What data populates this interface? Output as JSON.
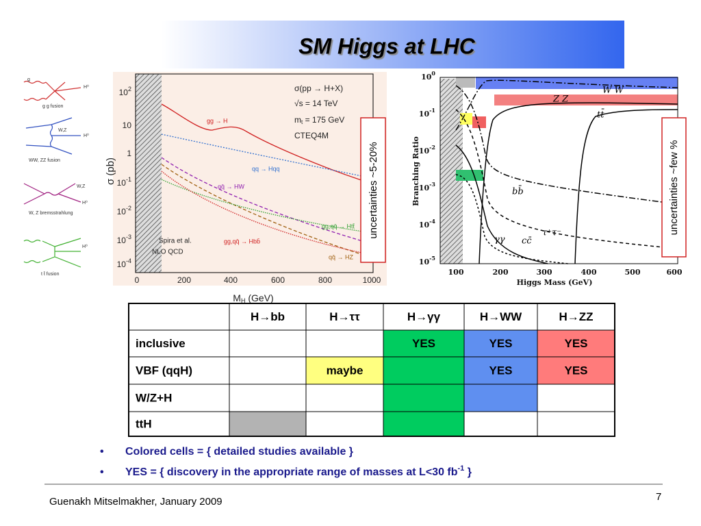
{
  "title": "SM Higgs at LHC",
  "diagrams": [
    {
      "caption": "g g fusion",
      "particles": [
        "g",
        "H⁰"
      ]
    },
    {
      "caption": "WW, ZZ fusion",
      "particles": [
        "W,Z",
        "H⁰"
      ]
    },
    {
      "caption": "W, Z bremsstrahlung",
      "particles": [
        "W,Z",
        "H⁰"
      ]
    },
    {
      "caption": "t t̄ fusion",
      "particles": [
        "H⁰"
      ]
    }
  ],
  "left_plot": {
    "y_label": "σ (pb)",
    "x_label": [
      "M",
      "H",
      " (GeV)"
    ],
    "y_ticks": [
      {
        "base": "10",
        "exp": "2"
      },
      "10",
      "1",
      {
        "base": "10",
        "exp": "-1"
      },
      {
        "base": "10",
        "exp": "-2"
      },
      {
        "base": "10",
        "exp": "-3"
      },
      {
        "base": "10",
        "exp": "-4"
      }
    ],
    "x_ticks": [
      "0",
      "200",
      "400",
      "600",
      "800",
      "1000"
    ],
    "process_info": [
      "σ(pp → H+X)",
      "√s = 14 TeV",
      [
        "m",
        "t",
        " = 175 GeV"
      ],
      "CTEQ4M"
    ],
    "curve_labels": [
      "gg → H",
      "qq → Hqq",
      "qq̄ → HW",
      "gg,qq̄ → Htt̄",
      "gg,qq̄ → Hbb̄",
      "qq̄ → HZ"
    ],
    "credit": [
      "Spira et al.",
      "NLO QCD"
    ]
  },
  "right_plot": {
    "y_label": "Branching Ratio",
    "x_label": "Higgs Mass (GeV)",
    "y_ticks": [
      {
        "base": "10",
        "exp": "0"
      },
      {
        "base": "10",
        "exp": "-1"
      },
      {
        "base": "10",
        "exp": "-2"
      },
      {
        "base": "10",
        "exp": "-3"
      },
      {
        "base": "10",
        "exp": "-4"
      },
      {
        "base": "10",
        "exp": "-5"
      }
    ],
    "x_ticks": [
      "100",
      "200",
      "300",
      "400",
      "500",
      "600"
    ],
    "curve_labels": [
      "W W",
      "Z Z",
      "tt̄",
      "bb̄",
      "τ⁺τ⁻",
      "cc̄",
      "γγ"
    ]
  },
  "uncertainty_notes": [
    "uncertainties ~5-20%",
    "uncertainties ~few %"
  ],
  "table": {
    "header": [
      "H→bb",
      "H→ττ",
      "H→γγ",
      "H→WW",
      "H→ZZ"
    ],
    "rows": [
      {
        "label": "inclusive",
        "cells": [
          null,
          null,
          "YES",
          "YES",
          "YES"
        ],
        "colors": [
          null,
          null,
          "#00cc5f",
          "#5f8ff0",
          "#ff7b7b"
        ]
      },
      {
        "label": "VBF (qqH)",
        "cells": [
          null,
          "maybe",
          null,
          "YES",
          "YES"
        ],
        "colors": [
          null,
          "#ffff80",
          "#00cc5f",
          "#5f8ff0",
          "#ff7b7b"
        ]
      },
      {
        "label": "W/Z+H",
        "cells": [
          null,
          null,
          null,
          null,
          null
        ],
        "colors": [
          null,
          null,
          "#00cc5f",
          "#5f8ff0",
          null
        ]
      },
      {
        "label": "ttH",
        "cells": [
          null,
          null,
          null,
          null,
          null
        ],
        "colors": [
          "#b3b3b3",
          null,
          "#00cc5f",
          null,
          null
        ]
      }
    ]
  },
  "bullets": [
    "Colored cells = { detailed studies available }",
    {
      "text": "YES = { discovery in the appropriate range of masses at L<30 fb",
      "sup": "-1",
      "tail": " }"
    }
  ],
  "footer": {
    "author": "Guenakh Mitselmakher, January 2009",
    "page": "7"
  }
}
